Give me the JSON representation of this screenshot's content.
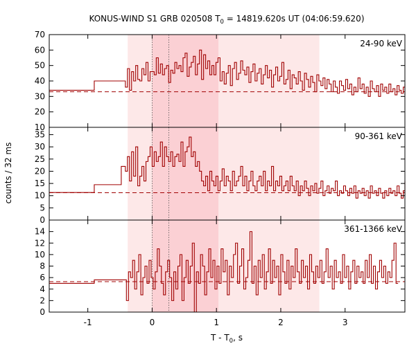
{
  "chart_data": {
    "type": "line",
    "title": "KONUS-WIND S1 GRB 020508 T",
    "title_sub": "0",
    "title_rest": " = 14819.620s UT (04:06:59.620)",
    "xlabel": "T - T",
    "xlabel_sub": "0",
    "xlabel_rest": ", s",
    "ylabel": "counts / 32 ms",
    "xlim": [
      -1.6,
      3.93
    ],
    "x_ticks": [
      -1,
      0,
      1,
      2,
      3
    ],
    "x_tick_labels": [
      "-1",
      "0",
      "1",
      "2",
      "3"
    ],
    "shaded_outer": [
      -0.38,
      2.6
    ],
    "shaded_inner": [
      0.0,
      1.03
    ],
    "dotted_lines": [
      0.0,
      0.26
    ],
    "colors": {
      "line": "#a00000",
      "shade_outer": "#fde8e8",
      "shade_inner": "#fbd0d4"
    },
    "panels": [
      {
        "label": "24-90 keV",
        "ylim": [
          10,
          70
        ],
        "yticks": [
          10,
          20,
          30,
          40,
          50,
          60,
          70
        ],
        "ytick_labels": [
          "10",
          "20",
          "30",
          "40",
          "50",
          "60",
          "70"
        ],
        "background": 33,
        "pre_steps": [
          [
            -1.6,
            34
          ],
          [
            -0.9,
            40
          ]
        ],
        "t_start": -0.48,
        "dt": 0.032,
        "values": [
          40,
          40,
          36,
          48,
          34,
          46,
          40,
          50,
          41,
          40,
          48,
          44,
          52,
          40,
          46,
          46,
          44,
          55,
          45,
          51,
          44,
          48,
          50,
          39,
          47,
          45,
          52,
          48,
          50,
          46,
          55,
          58,
          43,
          49,
          52,
          56,
          44,
          51,
          60,
          41,
          57,
          48,
          53,
          44,
          50,
          44,
          52,
          55,
          40,
          46,
          38,
          45,
          50,
          37,
          48,
          52,
          41,
          45,
          53,
          47,
          44,
          49,
          39,
          46,
          51,
          40,
          45,
          48,
          38,
          44,
          50,
          42,
          47,
          36,
          44,
          49,
          40,
          43,
          52,
          38,
          41,
          47,
          35,
          44,
          42,
          38,
          46,
          40,
          34,
          45,
          41,
          36,
          43,
          39,
          33,
          44,
          40,
          37,
          42,
          35,
          41,
          38,
          33,
          40,
          36,
          32,
          40,
          37,
          34,
          41,
          35,
          38,
          31,
          36,
          33,
          42,
          35,
          38,
          32,
          36,
          30,
          40,
          35,
          33,
          37,
          30,
          38,
          34,
          36,
          32,
          38,
          33,
          35,
          31,
          37,
          34,
          32,
          36,
          33,
          38,
          31,
          34,
          36,
          32,
          35,
          31,
          38,
          33
        ]
      },
      {
        "label": "90-361 keV",
        "ylim": [
          0,
          38
        ],
        "yticks": [
          0,
          5,
          10,
          15,
          20,
          25,
          30,
          35
        ],
        "ytick_labels": [
          "0",
          "5",
          "10",
          "15",
          "20",
          "25",
          "30",
          "35"
        ],
        "background": 11.2,
        "pre_steps": [
          [
            -1.6,
            11.3
          ],
          [
            -0.9,
            14.5
          ]
        ],
        "t_start": -0.48,
        "dt": 0.032,
        "values": [
          22,
          22,
          20,
          26,
          16,
          28,
          18,
          30,
          14,
          18,
          22,
          16,
          24,
          26,
          30,
          22,
          28,
          24,
          26,
          32,
          22,
          30,
          26,
          24,
          28,
          22,
          26,
          27,
          24,
          32,
          22,
          28,
          30,
          34,
          26,
          28,
          22,
          24,
          20,
          16,
          14,
          18,
          12,
          20,
          16,
          14,
          18,
          12,
          16,
          21,
          14,
          18,
          16,
          12,
          20,
          14,
          16,
          18,
          22,
          14,
          18,
          12,
          16,
          20,
          14,
          12,
          16,
          18,
          14,
          20,
          12,
          16,
          14,
          22,
          12,
          16,
          14,
          18,
          12,
          14,
          16,
          12,
          18,
          14,
          12,
          16,
          10,
          14,
          12,
          16,
          13,
          10,
          14,
          12,
          15,
          11,
          13,
          16,
          10,
          12,
          14,
          11,
          13,
          12,
          16,
          10,
          12,
          11,
          14,
          12,
          10,
          13,
          11,
          14,
          9,
          12,
          11,
          13,
          10,
          12,
          9,
          14,
          11,
          12,
          10,
          13,
          11,
          9,
          12,
          10,
          13,
          11,
          12,
          10,
          14,
          11,
          9,
          12,
          10,
          13,
          12,
          11,
          10,
          12,
          16,
          11,
          10,
          12
        ]
      },
      {
        "label": "361-1366 keV",
        "ylim": [
          0,
          16
        ],
        "yticks": [
          0,
          2,
          4,
          6,
          8,
          10,
          12,
          14
        ],
        "ytick_labels": [
          "0",
          "2",
          "4",
          "6",
          "8",
          "10",
          "12",
          "14"
        ],
        "background": 5.3,
        "pre_steps": [
          [
            -1.6,
            5.0
          ],
          [
            -0.9,
            5.6
          ]
        ],
        "t_start": -0.4,
        "dt": 0.032,
        "values": [
          2,
          7,
          6,
          9,
          4,
          7,
          10,
          3,
          6,
          8,
          5,
          9,
          6,
          4,
          7,
          11,
          8,
          5,
          3,
          7,
          9,
          6,
          2,
          7,
          4,
          8,
          10,
          2,
          6,
          9,
          5,
          8,
          12,
          0,
          7,
          5,
          10,
          8,
          3,
          7,
          11,
          6,
          9,
          4,
          8,
          5,
          11,
          7,
          9,
          3,
          8,
          6,
          10,
          12,
          5,
          8,
          11,
          4,
          6,
          9,
          14,
          5,
          8,
          3,
          9,
          6,
          10,
          4,
          7,
          11,
          5,
          9,
          6,
          8,
          3,
          10,
          7,
          5,
          9,
          4,
          8,
          6,
          11,
          7,
          5,
          9,
          6,
          8,
          4,
          10,
          7,
          5,
          8,
          6,
          9,
          5,
          7,
          11,
          6,
          8,
          4,
          9,
          6,
          7,
          5,
          10,
          6,
          8,
          4,
          7,
          9,
          5,
          8,
          6,
          7,
          5,
          9,
          6,
          10,
          5,
          8,
          4,
          7,
          9,
          6,
          8,
          5,
          7,
          6,
          9,
          12,
          5
        ]
      }
    ]
  }
}
